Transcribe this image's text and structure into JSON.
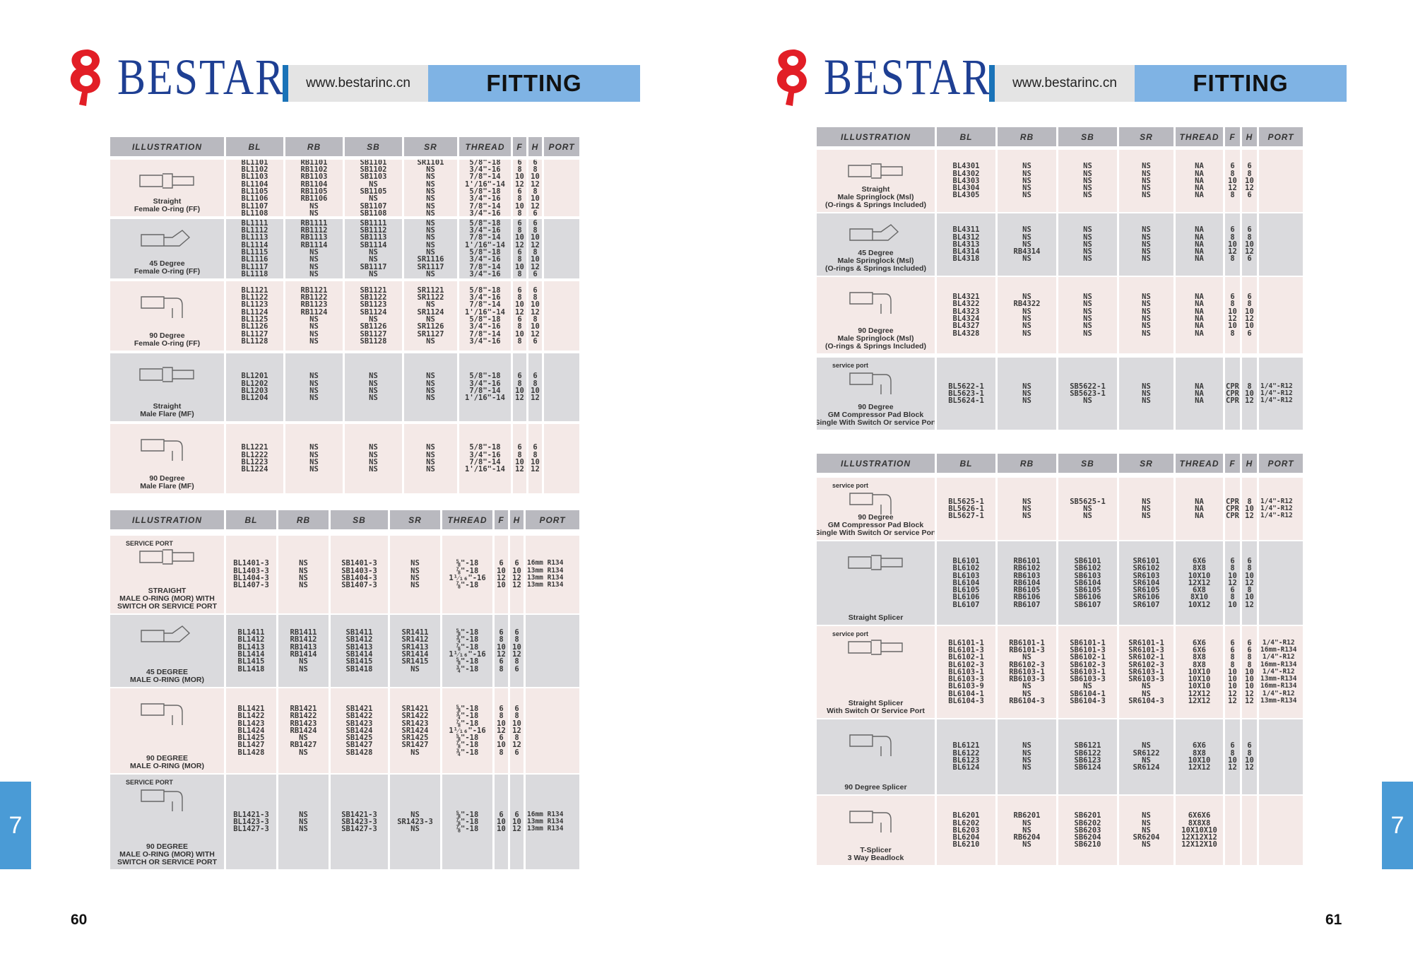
{
  "brand": "BESTAR",
  "website": "www.bestarinc.cn",
  "section_title": "FITTING",
  "chapter_tab": "7",
  "page_left": "60",
  "page_right": "61",
  "tables": [
    {
      "headers": [
        "ILLUSTRATION",
        "BL",
        "RB",
        "SB",
        "SR",
        "THREAD",
        "F",
        "H",
        "PORT"
      ],
      "rows": [
        {
          "name": "Straight\nFemale O-ring (FF)",
          "bl": "BL1101\nBL1102\nBL1103\nBL1104\nBL1105\nBL1106\nBL1107\nBL1108",
          "rb": "RB1101\nRB1102\nRB1103\nRB1104\nRB1105\nRB1106\nNS\nNS",
          "sb": "SB1101\nSB1102\nSB1103\nNS\nSB1105\nNS\nSB1107\nSB1108",
          "sr": "SR1101\nNS\nNS\nNS\nNS\nNS\nNS\nNS",
          "thread": "5/8\"-18\n3/4\"-16\n7/8\"-14\n1'/16\"-14\n5/8\"-18\n3/4\"-16\n7/8\"-14\n3/4\"-16",
          "f": "6\n8\n10\n12\n6\n8\n10\n8",
          "h": "6\n8\n10\n12\n8\n10\n12\n6",
          "port": ""
        },
        {
          "name": "45 Degree\nFemale O-ring (FF)",
          "bl": "BL1111\nBL1112\nBL1113\nBL1114\nBL1115\nBL1116\nBL1117\nBL1118",
          "rb": "RB1111\nRB1112\nRB1113\nRB1114\nNS\nNS\nNS\nNS",
          "sb": "SB1111\nSB1112\nSB1113\nSB1114\nNS\nNS\nSB1117\nNS",
          "sr": "NS\nNS\nNS\nNS\nNS\nSR1116\nSR1117\nNS",
          "thread": "5/8\"-18\n3/4\"-16\n7/8\"-14\n1'/16\"-14\n5/8\"-18\n3/4\"-16\n7/8\"-14\n3/4\"-16",
          "f": "6\n8\n10\n12\n6\n8\n10\n8",
          "h": "6\n8\n10\n12\n8\n10\n12\n6",
          "port": ""
        },
        {
          "name": "90 Degree\nFemale O-ring (FF)",
          "bl": "BL1121\nBL1122\nBL1123\nBL1124\nBL1125\nBL1126\nBL1127\nBL1128",
          "rb": "RB1121\nRB1122\nRB1123\nRB1124\nNS\nNS\nNS\nNS",
          "sb": "SB1121\nSB1122\nSB1123\nSB1124\nNS\nSB1126\nSB1127\nSB1128",
          "sr": "SR1121\nSR1122\nNS\nSR1124\nNS\nSR1126\nSR1127\nNS",
          "thread": "5/8\"-18\n3/4\"-16\n7/8\"-14\n1'/16\"-14\n5/8\"-18\n3/4\"-16\n7/8\"-14\n3/4\"-16",
          "f": "6\n8\n10\n12\n6\n8\n10\n8",
          "h": "6\n8\n10\n12\n8\n10\n12\n6",
          "port": ""
        },
        {
          "name": "Straight\nMale Flare (MF)",
          "bl": "BL1201\nBL1202\nBL1203\nBL1204",
          "rb": "NS\nNS\nNS\nNS",
          "sb": "NS\nNS\nNS\nNS",
          "sr": "NS\nNS\nNS\nNS",
          "thread": "5/8\"-18\n3/4\"-16\n7/8\"-14\n1'/16\"-14",
          "f": "6\n8\n10\n12",
          "h": "6\n8\n10\n12",
          "port": ""
        },
        {
          "name": "90 Degree\nMale Flare (MF)",
          "bl": "BL1221\nBL1222\nBL1223\nBL1224",
          "rb": "NS\nNS\nNS\nNS",
          "sb": "NS\nNS\nNS\nNS",
          "sr": "NS\nNS\nNS\nNS",
          "thread": "5/8\"-18\n3/4\"-16\n7/8\"-14\n1'/16\"-14",
          "f": "6\n8\n10\n12",
          "h": "6\n8\n10\n12",
          "port": ""
        }
      ]
    },
    {
      "headers": [
        "ILLUSTRATION",
        "BL",
        "RB",
        "SB",
        "SR",
        "THREAD",
        "F",
        "H",
        "PORT"
      ],
      "rows": [
        {
          "name": "STRAIGHT\nMALE O-RING (MOR) WITH\nSWITCH OR SERVICE PORT",
          "sub": "SERVICE PORT",
          "bl": "BL1401-3\nBL1403-3\nBL1404-3\nBL1407-3",
          "rb": "NS\nNS\nNS\nNS",
          "sb": "SB1401-3\nSB1403-3\nSB1404-3\nSB1407-3",
          "sr": "NS\nNS\nNS\nNS",
          "thread": "⅝\"-18\n⅞\"-18\n1¹⁄₁₆\"-16\n⅞\"-18",
          "f": "6\n10\n12\n10",
          "h": "6\n10\n12\n12",
          "port": "16mm R134\n13mm R134\n13mm R134\n13mm R134"
        },
        {
          "name": "45 DEGREE\nMALE O-RING (MOR)",
          "bl": "BL1411\nBL1412\nBL1413\nBL1414\nBL1415\nBL1418",
          "rb": "RB1411\nRB1412\nRB1413\nRB1414\nNS\nNS",
          "sb": "SB1411\nSB1412\nSB1413\nSB1414\nSB1415\nSB1418",
          "sr": "SR1411\nSR1412\nSR1413\nSR1414\nSR1415\nNS",
          "thread": "⅝\"-18\n¾\"-18\n⅞\"-18\n1¹⁄₁₆\"-16\n⅝\"-18\n¾\"-18",
          "f": "6\n8\n10\n12\n6\n8",
          "h": "6\n8\n10\n12\n8\n6",
          "port": ""
        },
        {
          "name": "90 DEGREE\nMALE O-RING (MOR)",
          "bl": "BL1421\nBL1422\nBL1423\nBL1424\nBL1425\nBL1427\nBL1428",
          "rb": "RB1421\nRB1422\nRB1423\nRB1424\nNS\nRB1427\nNS",
          "sb": "SB1421\nSB1422\nSB1423\nSB1424\nSB1425\nSB1427\nSB1428",
          "sr": "SR1421\nSR1422\nSR1423\nSR1424\nSR1425\nSR1427\nNS",
          "thread": "⅝\"-18\n¾\"-18\n⅞\"-18\n1¹⁄₁₆\"-16\n⅝\"-18\n⅞\"-18\n¾\"-18",
          "f": "6\n8\n10\n12\n6\n10\n8",
          "h": "6\n8\n10\n12\n8\n12\n6",
          "port": ""
        },
        {
          "name": "90 DEGREE\nMALE O-RING (MOR) WITH\nSWITCH OR SERVICE PORT",
          "sub": "SERVICE PORT",
          "bl": "BL1421-3\nBL1423-3\nBL1427-3",
          "rb": "NS\nNS\nNS",
          "sb": "SB1421-3\nSB1423-3\nSB1427-3",
          "sr": "NS\nSR1423-3\nNS",
          "thread": "⅝\"-18\n⅞\"-18\n⅞\"-18",
          "f": "6\n10\n10",
          "h": "6\n10\n12",
          "port": "16mm R134\n13mm R134\n13mm R134"
        }
      ]
    },
    {
      "headers": [
        "ILLUSTRATION",
        "BL",
        "RB",
        "SB",
        "SR",
        "THREAD",
        "F",
        "H",
        "PORT"
      ],
      "rows": [
        {
          "name": "Straight\nMale Springlock (Msl)\n(O-rings & Springs Included)",
          "bl": "BL4301\nBL4302\nBL4303\nBL4304\nBL4305",
          "rb": "NS\nNS\nNS\nNS\nNS",
          "sb": "NS\nNS\nNS\nNS\nNS",
          "sr": "NS\nNS\nNS\nNS\nNS",
          "thread": "NA\nNA\nNA\nNA\nNA",
          "f": "6\n8\n10\n12\n8",
          "h": "6\n8\n10\n12\n6",
          "port": ""
        },
        {
          "name": "45 Degree\nMale Springlock (Msl)\n(O-rings & Springs Included)",
          "bl": "BL4311\nBL4312\nBL4313\nBL4314\nBL4318",
          "rb": "NS\nNS\nNS\nRB4314\nNS",
          "sb": "NS\nNS\nNS\nNS\nNS",
          "sr": "NS\nNS\nNS\nNS\nNS",
          "thread": "NA\nNA\nNA\nNA\nNA",
          "f": "6\n8\n10\n12\n8",
          "h": "6\n8\n10\n12\n6",
          "port": ""
        },
        {
          "name": "90 Degree\nMale Springlock (Msl)\n(O-rings & Springs Included)",
          "bl": "BL4321\nBL4322\nBL4323\nBL4324\nBL4327\nBL4328",
          "rb": "NS\nRB4322\nNS\nNS\nNS\nNS",
          "sb": "NS\nNS\nNS\nNS\nNS\nNS",
          "sr": "NS\nNS\nNS\nNS\nNS\nNS",
          "thread": "NA\nNA\nNA\nNA\nNA\nNA",
          "f": "6\n8\n10\n12\n10\n8",
          "h": "6\n8\n10\n12\n10\n6",
          "port": ""
        },
        {
          "name": "90 Degree\nGM Compressor Pad Block\nSingle With Switch Or service Port",
          "sub": "service port",
          "bl": "BL5622-1\nBL5623-1\nBL5624-1",
          "rb": "NS\nNS\nNS",
          "sb": "SB5622-1\nSB5623-1\nNS",
          "sr": "NS\nNS\nNS",
          "thread": "NA\nNA\nNA",
          "f": "CPR\nCPR\nCPR",
          "h": "8\n10\n12",
          "port": "1/4\"-R12\n1/4\"-R12\n1/4\"-R12"
        }
      ]
    },
    {
      "headers": [
        "ILLUSTRATION",
        "BL",
        "RB",
        "SB",
        "SR",
        "THREAD",
        "F",
        "H",
        "PORT"
      ],
      "rows": [
        {
          "name": "90 Degree\nGM Compressor Pad Block\nSingle With Switch Or service Port",
          "sub": "service port",
          "bl": "BL5625-1\nBL5626-1\nBL5627-1",
          "rb": "NS\nNS\nNS",
          "sb": "SB5625-1\nNS\nNS",
          "sr": "NS\nNS\nNS",
          "thread": "NA\nNA\nNA",
          "f": "CPR\nCPR\nCPR",
          "h": "8\n10\n12",
          "port": "1/4\"-R12\n1/4\"-R12\n1/4\"-R12"
        },
        {
          "name": "Straight Splicer",
          "bl": "BL6101\nBL6102\nBL6103\nBL6104\nBL6105\nBL6106\nBL6107",
          "rb": "RB6101\nRB6102\nRB6103\nRB6104\nRB6105\nRB6106\nRB6107",
          "sb": "SB6101\nSB6102\nSB6103\nSB6104\nSB6105\nSB6106\nSB6107",
          "sr": "SR6101\nSR6102\nSR6103\nSR6104\nSR6105\nSR6106\nSR6107",
          "thread": "6X6\n8X8\n10X10\n12X12\n6X8\n8X10\n10X12",
          "f": "6\n8\n10\n12\n6\n8\n10",
          "h": "6\n8\n10\n12\n8\n10\n12",
          "port": ""
        },
        {
          "name": "Straight Splicer\nWith Switch Or Service Port",
          "sub": "service port",
          "bl": "BL6101-1\nBL6101-3\nBL6102-1\nBL6102-3\nBL6103-1\nBL6103-3\nBL6103-9\nBL6104-1\nBL6104-3",
          "rb": "RB6101-1\nRB6101-3\nNS\nRB6102-3\nRB6103-1\nRB6103-3\nNS\nNS\nRB6104-3",
          "sb": "SB6101-1\nSB6101-3\nSB6102-1\nSB6102-3\nSB6103-1\nSB6103-3\nNS\nSB6104-1\nSB6104-3",
          "sr": "SR6101-1\nSR6101-3\nSR6102-1\nSR6102-3\nSR6103-1\nSR6103-3\nNS\nNS\nSR6104-3",
          "thread": "6X6\n6X6\n8X8\n8X8\n10X10\n10X10\n10X10\n12X12\n12X12",
          "f": "6\n6\n8\n8\n10\n10\n10\n12\n12",
          "h": "6\n6\n8\n8\n10\n10\n10\n12\n12",
          "port": "1/4\"-R12\n16mm-R134\n1/4\"-R12\n16mm-R134\n1/4\"-R12\n13mm-R134\n16mm-R134\n1/4\"-R12\n13mm-R134"
        },
        {
          "name": "90 Degree Splicer",
          "bl": "BL6121\nBL6122\nBL6123\nBL6124",
          "rb": "NS\nNS\nNS\nNS",
          "sb": "SB6121\nSB6122\nSB6123\nSB6124",
          "sr": "NS\nSR6122\nNS\nSR6124",
          "thread": "6X6\n8X8\n10X10\n12X12",
          "f": "6\n8\n10\n12",
          "h": "6\n8\n10\n12",
          "port": ""
        },
        {
          "name": "T-Splicer\n3 Way Beadlock",
          "bl": "BL6201\nBL6202\nBL6203\nBL6204\nBL6210",
          "rb": "RB6201\nNS\nNS\nRB6204\nNS",
          "sb": "SB6201\nSB6202\nSB6203\nSB6204\nSB6210",
          "sr": "NS\nNS\nNS\nSR6204\nNS",
          "thread": "6X6X6\n8X8X8\n10X10X10\n12X12X12\n12X12X10",
          "f": "",
          "h": "",
          "port": ""
        }
      ]
    }
  ]
}
